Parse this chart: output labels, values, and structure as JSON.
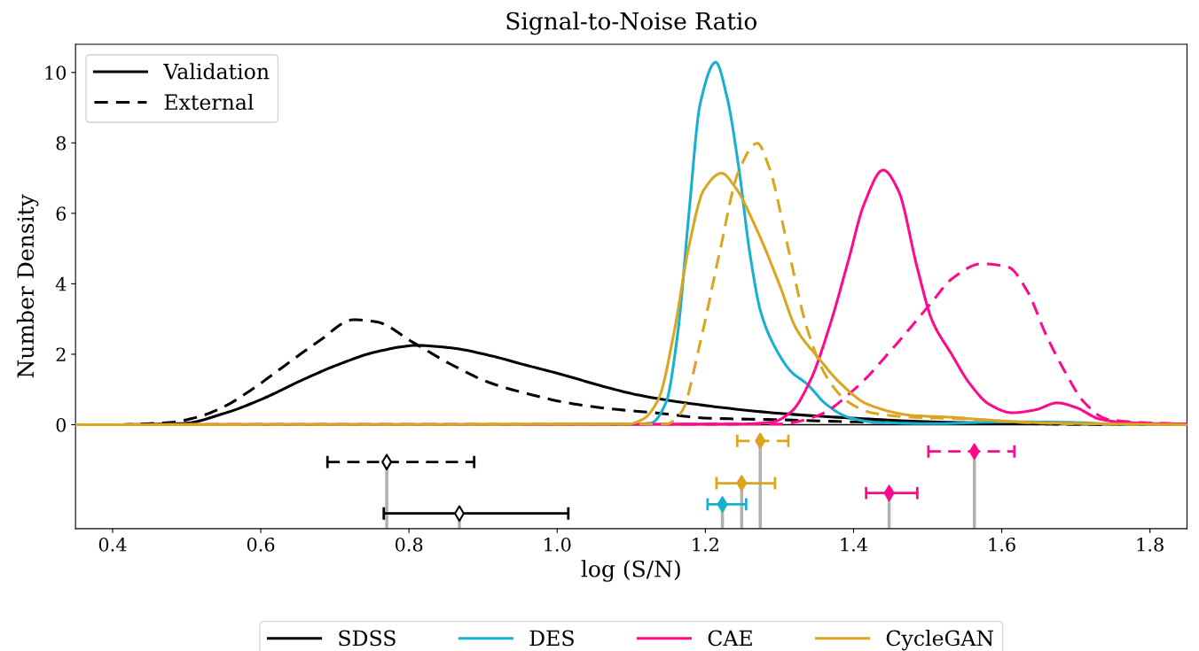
{
  "chart_data": {
    "type": "line",
    "title": "Signal-to-Noise Ratio",
    "xlabel": "log (S/N)",
    "ylabel": "Number Density",
    "xlim": [
      0.35,
      1.85
    ],
    "xticks": [
      0.4,
      0.6,
      0.8,
      {
        "value": 1.0,
        "label": "1.0"
      },
      1.2,
      1.4,
      1.6,
      1.8
    ],
    "ylim": [
      -2.95,
      10.8
    ],
    "yticks": [
      0,
      2,
      4,
      6,
      8,
      10
    ],
    "grid": false,
    "legend": "bottom",
    "ref_lines": [
      {
        "axis": "y",
        "value": 0,
        "color": "#000000"
      }
    ],
    "annotations": [
      "Validation",
      "External"
    ],
    "series": [
      {
        "name": "SDSS",
        "color": "#000000",
        "line_style": "solid",
        "x": [
          0.35,
          0.4,
          0.496,
          0.552,
          0.603,
          0.654,
          0.705,
          0.756,
          0.811,
          0.857,
          0.908,
          0.958,
          1.009,
          1.06,
          1.11,
          1.198,
          1.301,
          1.404,
          1.506,
          1.609,
          1.711,
          1.85
        ],
        "values": [
          0,
          0,
          0.04,
          0.33,
          0.74,
          1.25,
          1.71,
          2.07,
          2.25,
          2.18,
          1.97,
          1.69,
          1.41,
          1.1,
          0.84,
          0.55,
          0.32,
          0.18,
          0.08,
          0.04,
          0.02,
          0.01
        ]
      },
      {
        "color": "#000000",
        "line_style": "dashed",
        "x": [
          0.35,
          0.4,
          0.476,
          0.517,
          0.552,
          0.588,
          0.628,
          0.679,
          0.725,
          0.756,
          0.806,
          0.857,
          0.908,
          0.958,
          1.009,
          1.06,
          1.145,
          1.198,
          1.301,
          1.404,
          1.506,
          1.609,
          1.711,
          1.85
        ],
        "values": [
          0,
          0,
          0.06,
          0.23,
          0.53,
          1.0,
          1.61,
          2.38,
          2.98,
          2.92,
          2.33,
          1.71,
          1.2,
          0.89,
          0.64,
          0.48,
          0.31,
          0.19,
          0.14,
          0.08,
          0.05,
          0.03,
          0.01,
          0
        ]
      },
      {
        "name": "DES",
        "color": "#17b0cf",
        "line_style": "solid",
        "x": [
          0.35,
          1.096,
          1.127,
          1.147,
          1.163,
          1.178,
          1.193,
          1.214,
          1.229,
          1.245,
          1.26,
          1.275,
          1.296,
          1.316,
          1.337,
          1.363,
          1.393,
          1.429,
          1.506,
          1.609,
          1.686,
          1.763,
          1.85
        ],
        "values": [
          0,
          0,
          0.05,
          0.64,
          2.65,
          6.04,
          9.11,
          10.29,
          9.32,
          7.31,
          4.87,
          3.18,
          2.12,
          1.5,
          1.16,
          0.58,
          0.21,
          0.07,
          0.03,
          0.08,
          0.07,
          0.01,
          0
        ]
      },
      {
        "name": "CAE",
        "color": "#ff0a8a",
        "line_style": "solid",
        "x": [
          0.35,
          1.25,
          1.291,
          1.316,
          1.342,
          1.367,
          1.393,
          1.414,
          1.44,
          1.46,
          1.486,
          1.506,
          1.532,
          1.557,
          1.583,
          1.614,
          1.645,
          1.675,
          1.701,
          1.732,
          1.763,
          1.814,
          1.85
        ],
        "values": [
          0,
          0.02,
          0.08,
          0.37,
          1.27,
          2.75,
          4.66,
          6.25,
          7.23,
          6.67,
          4.45,
          2.96,
          2.01,
          1.16,
          0.58,
          0.34,
          0.42,
          0.62,
          0.48,
          0.16,
          0.07,
          0.03,
          0.02
        ]
      },
      {
        "color": "#ff0a8a",
        "line_style": "dashed",
        "x": [
          0.35,
          1.301,
          1.352,
          1.404,
          1.455,
          1.506,
          1.532,
          1.573,
          1.609,
          1.634,
          1.66,
          1.686,
          1.711,
          1.742,
          1.788,
          1.85
        ],
        "values": [
          0,
          0.02,
          0.26,
          1.06,
          2.22,
          3.49,
          4.13,
          4.57,
          4.47,
          3.81,
          2.54,
          1.48,
          0.64,
          0.16,
          0.06,
          0.02
        ]
      },
      {
        "name": "CycleGAN",
        "color": "#daa520",
        "line_style": "solid",
        "x": [
          0.35,
          1.096,
          1.116,
          1.137,
          1.157,
          1.178,
          1.198,
          1.222,
          1.239,
          1.27,
          1.301,
          1.322,
          1.352,
          1.383,
          1.419,
          1.481,
          1.532,
          1.583,
          1.66,
          1.85
        ],
        "values": [
          0,
          0.02,
          0.16,
          0.74,
          2.54,
          5.08,
          6.67,
          7.14,
          6.78,
          5.51,
          3.92,
          2.75,
          1.91,
          1.16,
          0.58,
          0.26,
          0.21,
          0.13,
          0.05,
          0
        ]
      },
      {
        "color": "#daa520",
        "line_style": "dashed",
        "x": [
          0.35,
          1.147,
          1.168,
          1.193,
          1.219,
          1.245,
          1.27,
          1.286,
          1.311,
          1.337,
          1.363,
          1.393,
          1.429,
          1.481,
          1.557,
          1.634,
          1.711,
          1.85
        ],
        "values": [
          0,
          0.02,
          0.37,
          2.33,
          4.87,
          7.2,
          7.99,
          7.31,
          5.08,
          2.75,
          1.38,
          0.64,
          0.32,
          0.21,
          0.16,
          0.06,
          0.02,
          0
        ]
      },
      {
        "type": "scatter",
        "color": "#000000",
        "line_style": "dashed",
        "marker": "diamond",
        "colors": [
          "#ffffff"
        ],
        "x": [
          0.77
        ],
        "values": [
          -1.06
        ],
        "errors": [
          [
            -2.95,
            -1.06
          ]
        ],
        "xerrors": [
          [
            0.69,
            0.888
          ]
        ]
      },
      {
        "type": "scatter",
        "color": "#000000",
        "line_style": "solid",
        "marker": "diamond",
        "colors": [
          "#ffffff"
        ],
        "x": [
          0.868
        ],
        "values": [
          -2.52
        ],
        "errors": [
          [
            -2.95,
            -2.52
          ]
        ],
        "xerrors": [
          [
            0.766,
            1.015
          ]
        ]
      },
      {
        "type": "scatter",
        "color": "#17b0cf",
        "line_style": "solid",
        "marker": "diamond",
        "x": [
          1.223
        ],
        "values": [
          -2.26
        ],
        "errors": [
          [
            -2.95,
            -2.26
          ]
        ],
        "xerrors": [
          [
            1.203,
            1.255
          ]
        ]
      },
      {
        "type": "scatter",
        "color": "#daa520",
        "line_style": "dashed",
        "marker": "diamond",
        "x": [
          1.274
        ],
        "values": [
          -0.46
        ],
        "errors": [
          [
            -2.95,
            -0.46
          ]
        ],
        "xerrors": [
          [
            1.243,
            1.312
          ]
        ]
      },
      {
        "type": "scatter",
        "color": "#daa520",
        "line_style": "solid",
        "marker": "diamond",
        "x": [
          1.249
        ],
        "values": [
          -1.66
        ],
        "errors": [
          [
            -2.95,
            -1.66
          ]
        ],
        "xerrors": [
          [
            1.215,
            1.294
          ]
        ]
      },
      {
        "type": "scatter",
        "color": "#ff0a8a",
        "line_style": "solid",
        "marker": "diamond",
        "x": [
          1.448
        ],
        "values": [
          -1.94
        ],
        "errors": [
          [
            -2.95,
            -1.94
          ]
        ],
        "xerrors": [
          [
            1.417,
            1.486
          ]
        ]
      },
      {
        "type": "scatter",
        "color": "#ff0a8a",
        "line_style": "dashed",
        "marker": "diamond",
        "x": [
          1.563
        ],
        "values": [
          -0.76
        ],
        "errors": [
          [
            -2.95,
            -0.76
          ]
        ],
        "xerrors": [
          [
            1.501,
            1.617
          ]
        ]
      }
    ]
  }
}
